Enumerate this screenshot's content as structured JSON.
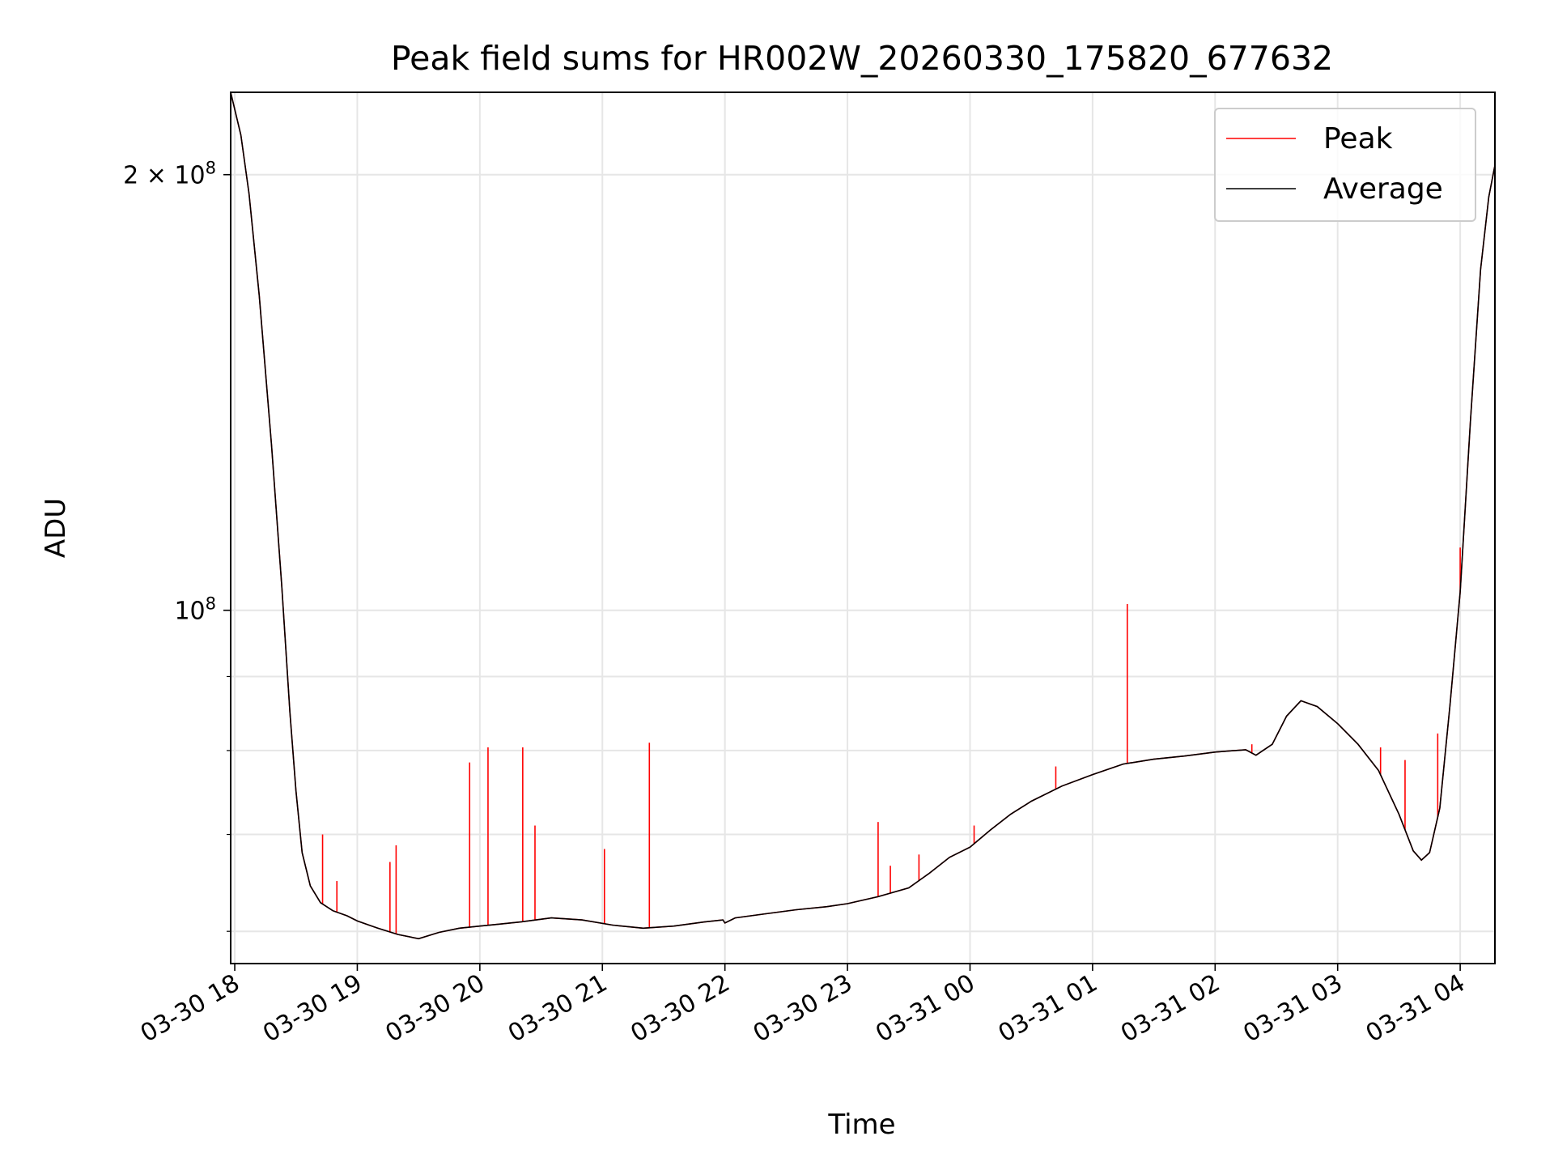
{
  "chart_data": {
    "type": "line",
    "title": "Peak field sums for HR002W_20260330_175820_677632",
    "xlabel": "Time",
    "ylabel": "ADU",
    "yscale": "log",
    "xlim": [
      "2026-03-30 17:58",
      "2026-03-31 04:17"
    ],
    "ylim": [
      57000000,
      228000000
    ],
    "grid": true,
    "legend_position": "top-right",
    "x_ticks": [
      {
        "t": "2026-03-30 18:00",
        "label": "03-30 18"
      },
      {
        "t": "2026-03-30 19:00",
        "label": "03-30 19"
      },
      {
        "t": "2026-03-30 20:00",
        "label": "03-30 20"
      },
      {
        "t": "2026-03-30 21:00",
        "label": "03-30 21"
      },
      {
        "t": "2026-03-30 22:00",
        "label": "03-30 22"
      },
      {
        "t": "2026-03-30 23:00",
        "label": "03-30 23"
      },
      {
        "t": "2026-03-31 00:00",
        "label": "03-31 00"
      },
      {
        "t": "2026-03-31 01:00",
        "label": "03-31 01"
      },
      {
        "t": "2026-03-31 02:00",
        "label": "03-31 02"
      },
      {
        "t": "2026-03-31 03:00",
        "label": "03-31 03"
      },
      {
        "t": "2026-03-31 04:00",
        "label": "03-31 04"
      }
    ],
    "y_major_ticks": [
      {
        "value": 200000000,
        "base": "2 × 10",
        "exp": "8"
      },
      {
        "value": 100000000,
        "base": "10",
        "exp": "8"
      }
    ],
    "y_minor_ticks": [
      60000000,
      70000000,
      80000000,
      90000000
    ],
    "series": [
      {
        "name": "Average",
        "color": "#000000",
        "points": [
          [
            "2026-03-30 17:58",
            228000000
          ],
          [
            "2026-03-30 18:03",
            213000000
          ],
          [
            "2026-03-30 18:07",
            194000000
          ],
          [
            "2026-03-30 18:12",
            165000000
          ],
          [
            "2026-03-30 18:18",
            130000000
          ],
          [
            "2026-03-30 18:23",
            104000000
          ],
          [
            "2026-03-30 18:27",
            85000000
          ],
          [
            "2026-03-30 18:30",
            75000000
          ],
          [
            "2026-03-30 18:33",
            68000000
          ],
          [
            "2026-03-30 18:37",
            64500000
          ],
          [
            "2026-03-30 18:42",
            62800000
          ],
          [
            "2026-03-30 18:48",
            62000000
          ],
          [
            "2026-03-30 18:55",
            61500000
          ],
          [
            "2026-03-30 19:00",
            61000000
          ],
          [
            "2026-03-30 19:10",
            60300000
          ],
          [
            "2026-03-30 19:20",
            59700000
          ],
          [
            "2026-03-30 19:30",
            59300000
          ],
          [
            "2026-03-30 19:40",
            59900000
          ],
          [
            "2026-03-30 19:50",
            60300000
          ],
          [
            "2026-03-30 20:00",
            60500000
          ],
          [
            "2026-03-30 20:10",
            60700000
          ],
          [
            "2026-03-30 20:20",
            60900000
          ],
          [
            "2026-03-30 20:35",
            61300000
          ],
          [
            "2026-03-30 20:50",
            61100000
          ],
          [
            "2026-03-30 21:05",
            60600000
          ],
          [
            "2026-03-30 21:20",
            60300000
          ],
          [
            "2026-03-30 21:35",
            60500000
          ],
          [
            "2026-03-30 21:50",
            60900000
          ],
          [
            "2026-03-30 21:59",
            61100000
          ],
          [
            "2026-03-30 22:00",
            60800000
          ],
          [
            "2026-03-30 22:05",
            61300000
          ],
          [
            "2026-03-30 22:20",
            61700000
          ],
          [
            "2026-03-30 22:35",
            62100000
          ],
          [
            "2026-03-30 22:50",
            62400000
          ],
          [
            "2026-03-30 23:00",
            62700000
          ],
          [
            "2026-03-30 23:15",
            63400000
          ],
          [
            "2026-03-30 23:30",
            64300000
          ],
          [
            "2026-03-30 23:40",
            65800000
          ],
          [
            "2026-03-30 23:50",
            67500000
          ],
          [
            "2026-03-31 00:00",
            68600000
          ],
          [
            "2026-03-31 00:10",
            70500000
          ],
          [
            "2026-03-31 00:20",
            72300000
          ],
          [
            "2026-03-31 00:30",
            73800000
          ],
          [
            "2026-03-31 00:45",
            75600000
          ],
          [
            "2026-03-31 01:00",
            77000000
          ],
          [
            "2026-03-31 01:15",
            78300000
          ],
          [
            "2026-03-31 01:30",
            78900000
          ],
          [
            "2026-03-31 01:45",
            79300000
          ],
          [
            "2026-03-31 02:00",
            79800000
          ],
          [
            "2026-03-31 02:15",
            80100000
          ],
          [
            "2026-03-31 02:20",
            79400000
          ],
          [
            "2026-03-31 02:28",
            80800000
          ],
          [
            "2026-03-31 02:35",
            84500000
          ],
          [
            "2026-03-31 02:42",
            86600000
          ],
          [
            "2026-03-31 02:50",
            85800000
          ],
          [
            "2026-03-31 03:00",
            83500000
          ],
          [
            "2026-03-31 03:10",
            80800000
          ],
          [
            "2026-03-31 03:20",
            77500000
          ],
          [
            "2026-03-31 03:30",
            72300000
          ],
          [
            "2026-03-31 03:37",
            68200000
          ],
          [
            "2026-03-31 03:41",
            67200000
          ],
          [
            "2026-03-31 03:45",
            68000000
          ],
          [
            "2026-03-31 03:50",
            73000000
          ],
          [
            "2026-03-31 03:55",
            86000000
          ],
          [
            "2026-03-31 04:00",
            103000000
          ],
          [
            "2026-03-31 04:05",
            135000000
          ],
          [
            "2026-03-31 04:10",
            172000000
          ],
          [
            "2026-03-31 04:14",
            193000000
          ],
          [
            "2026-03-31 04:17",
            203000000
          ]
        ]
      },
      {
        "name": "Peak",
        "color": "#ff0000",
        "spikes": [
          [
            "2026-03-30 18:43",
            70000000
          ],
          [
            "2026-03-30 18:50",
            65000000
          ],
          [
            "2026-03-30 19:16",
            67000000
          ],
          [
            "2026-03-30 19:19",
            68800000
          ],
          [
            "2026-03-30 19:55",
            78500000
          ],
          [
            "2026-03-30 20:04",
            80400000
          ],
          [
            "2026-03-30 20:21",
            80400000
          ],
          [
            "2026-03-30 20:27",
            71000000
          ],
          [
            "2026-03-30 21:01",
            68400000
          ],
          [
            "2026-03-30 21:23",
            81000000
          ],
          [
            "2026-03-30 23:15",
            71400000
          ],
          [
            "2026-03-30 23:21",
            66600000
          ],
          [
            "2026-03-30 23:35",
            67800000
          ],
          [
            "2026-03-31 00:02",
            71000000
          ],
          [
            "2026-03-31 00:42",
            78000000
          ],
          [
            "2026-03-31 01:17",
            101000000
          ],
          [
            "2026-03-31 02:18",
            80800000
          ],
          [
            "2026-03-31 03:21",
            80400000
          ],
          [
            "2026-03-31 03:33",
            78800000
          ],
          [
            "2026-03-31 03:49",
            82200000
          ],
          [
            "2026-03-31 04:00",
            110500000
          ]
        ]
      }
    ]
  }
}
